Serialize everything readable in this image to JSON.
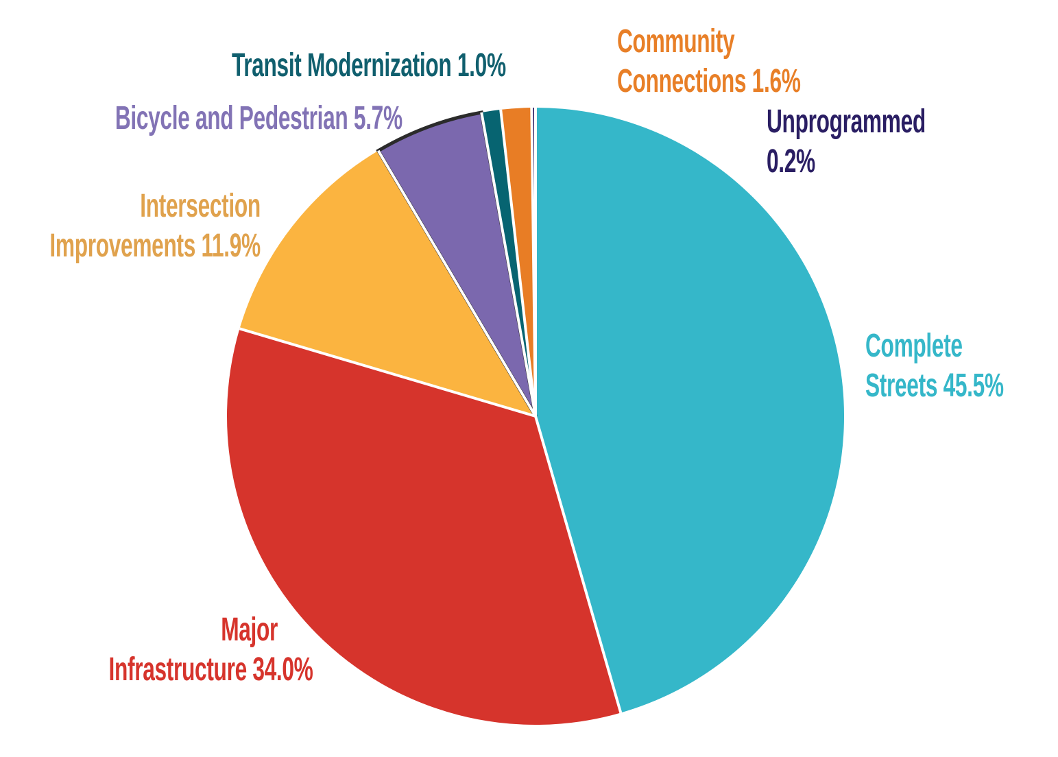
{
  "background_color": "#ffffff",
  "chart_data": {
    "type": "pie",
    "values_unit": "percent",
    "start_angle_deg": 0,
    "direction": "clockwise",
    "legend_position": "outside-labels-colored-to-match-slices",
    "slices": [
      {
        "id": "complete-streets",
        "name": "Complete Streets",
        "value": 45.5,
        "pct_display": "45.5%",
        "color": "#35b7c9",
        "text_color": "#35b7c9",
        "label_lines": [
          "Complete",
          "Streets 45.5%"
        ]
      },
      {
        "id": "major-infrastructure",
        "name": "Major Infrastructure",
        "value": 34.0,
        "pct_display": "34.0%",
        "color": "#d6342c",
        "text_color": "#d6342c",
        "label_lines": [
          "Major",
          "Infrastructure 34.0%"
        ]
      },
      {
        "id": "intersection-improvements",
        "name": "Intersection Improvements",
        "value": 11.9,
        "pct_display": "11.9%",
        "color": "#fbb440",
        "text_color": "#e0a24d",
        "label_lines": [
          "Intersection",
          "Improvements 11.9%"
        ]
      },
      {
        "id": "bicycle-pedestrian",
        "name": "Bicycle and Pedestrian",
        "value": 5.7,
        "pct_display": "5.7%",
        "color": "#7b68ae",
        "text_color": "#8273b5",
        "outline": "#2b2b2b",
        "label_lines": [
          "Bicycle and Pedestrian 5.7%"
        ]
      },
      {
        "id": "transit-modernization",
        "name": "Transit Modernization",
        "value": 1.0,
        "pct_display": "1.0%",
        "color": "#076471",
        "text_color": "#105f6e",
        "label_lines": [
          "Transit Modernization 1.0%"
        ]
      },
      {
        "id": "community-connections",
        "name": "Community Connections",
        "value": 1.6,
        "pct_display": "1.6%",
        "color": "#e87d25",
        "text_color": "#e87f27",
        "label_lines": [
          "Community",
          "Connections 1.6%"
        ]
      },
      {
        "id": "unprogrammed",
        "name": "Unprogrammed",
        "value": 0.2,
        "pct_display": "0.2%",
        "color": "#291b5f",
        "text_color": "#2a1e63",
        "label_lines": [
          "Unprogrammed",
          "0.2%"
        ]
      }
    ]
  }
}
